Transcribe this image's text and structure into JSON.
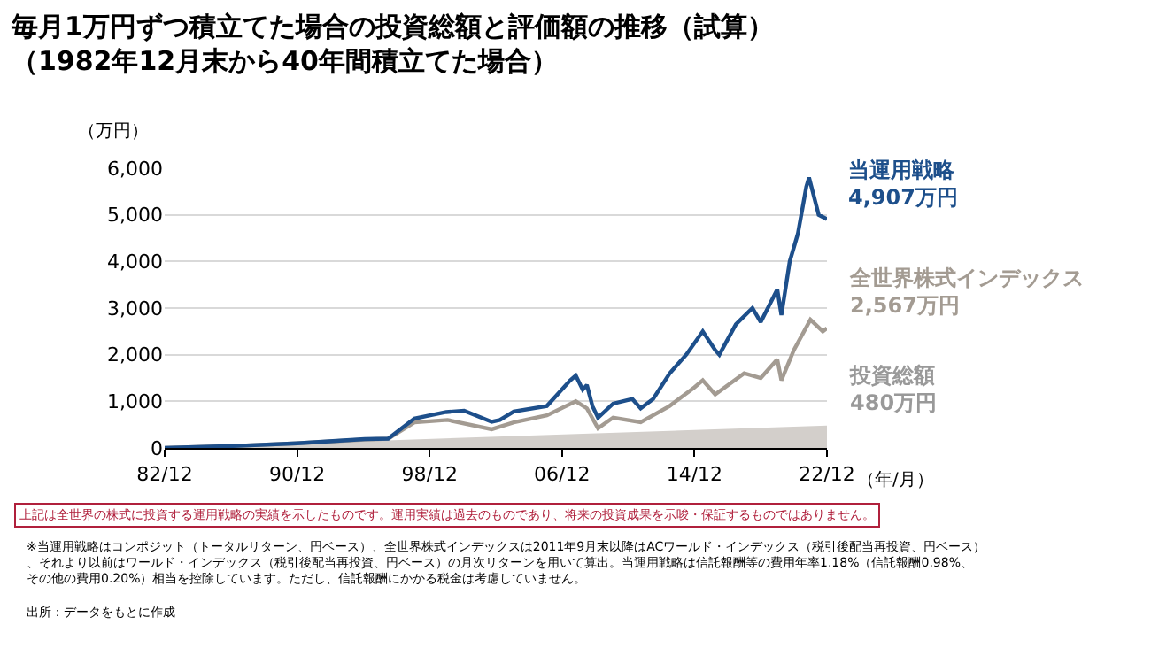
{
  "chart_data": {
    "type": "line",
    "title": "毎月1万円ずつ積立てた場合の投資総額と評価額の推移（試算）",
    "subtitle": "（1982年12月末から40年間積立てた場合）",
    "ylabel": "（万円）",
    "xlabel": "（年/月）",
    "xlim": [
      "1982-12",
      "2022-12"
    ],
    "xticks": [
      {
        "value": "1982-12",
        "label": "82/12"
      },
      {
        "value": "1990-12",
        "label": "90/12"
      },
      {
        "value": "1998-12",
        "label": "98/12"
      },
      {
        "value": "2006-12",
        "label": "06/12"
      },
      {
        "value": "2014-12",
        "label": "14/12"
      },
      {
        "value": "2022-12",
        "label": "22/12"
      }
    ],
    "ylim": [
      0,
      6000
    ],
    "yticks": [
      0,
      {
        "value": 1000,
        "label": "1,000"
      },
      {
        "value": 2000,
        "label": "2,000"
      },
      {
        "value": 3000,
        "label": "3,000"
      },
      {
        "value": 4000,
        "label": "4,000"
      },
      {
        "value": 5000,
        "label": "5,000"
      },
      {
        "value": 6000,
        "label": "6,000"
      }
    ],
    "grid": "y",
    "legend": false,
    "marker": "none",
    "line_style": "solid",
    "series": [
      {
        "name": "投資総額",
        "type": "area",
        "color": "#d3cfcb",
        "x": [
          "1982-12",
          "2022-12"
        ],
        "values": [
          0,
          480
        ]
      },
      {
        "name": "全世界株式インデックス",
        "color": "#a39b92",
        "x": [
          "1982-12",
          "1986-12",
          "1990-12",
          "1995-01",
          "1996-06",
          "1998-01",
          "2000-01",
          "2002-09",
          "2004-01",
          "2006-01",
          "2007-10",
          "2008-06",
          "2009-02",
          "2010-01",
          "2011-09",
          "2013-06",
          "2014-12",
          "2015-06",
          "2016-03",
          "2017-12",
          "2018-12",
          "2019-12",
          "2020-03",
          "2020-12",
          "2021-12",
          "2022-09",
          "2022-12"
        ],
        "values": [
          0,
          40,
          100,
          180,
          200,
          550,
          600,
          400,
          550,
          700,
          1000,
          850,
          420,
          650,
          550,
          900,
          1300,
          1450,
          1150,
          1600,
          1500,
          1900,
          1450,
          2100,
          2750,
          2500,
          2567
        ]
      },
      {
        "name": "当運用戦略",
        "color": "#1d4f8b",
        "x": [
          "1982-12",
          "1986-12",
          "1990-12",
          "1995-01",
          "1996-06",
          "1998-01",
          "1999-12",
          "2001-01",
          "2002-09",
          "2003-03",
          "2004-01",
          "2006-01",
          "2007-06",
          "2007-10",
          "2008-03",
          "2008-06",
          "2008-10",
          "2009-02",
          "2010-01",
          "2011-03",
          "2011-09",
          "2012-06",
          "2013-06",
          "2014-06",
          "2015-06",
          "2016-03",
          "2016-06",
          "2017-06",
          "2018-06",
          "2018-12",
          "2019-12",
          "2020-03",
          "2020-09",
          "2021-03",
          "2021-09",
          "2021-11",
          "2022-06",
          "2022-12"
        ],
        "values": [
          0,
          40,
          100,
          190,
          200,
          630,
          770,
          800,
          560,
          600,
          780,
          900,
          1450,
          1550,
          1250,
          1350,
          900,
          650,
          950,
          1050,
          850,
          1050,
          1600,
          2000,
          2500,
          2100,
          2000,
          2650,
          3000,
          2700,
          3400,
          2850,
          4000,
          4600,
          5600,
          5800,
          5000,
          4907
        ]
      }
    ],
    "annotations": [
      {
        "text": "480万円",
        "x": "2022-12",
        "y": 480
      },
      {
        "text": "2,567万円",
        "x": "2022-12",
        "y": 2567
      },
      {
        "text": "4,907万円",
        "x": "2022-12",
        "y": 4907
      },
      "上記は全世界の株式に投資する運用戦略の実績を示したものです。運用実績は過去のものであり、将来の投資成果を示唆・保証するものではありません。",
      "※当運用戦略はコンポジット（トータルリターン、円ベース）、全世界株式インデックスは2011年9月末以降はACワールド・インデックス（税引後配当再投資、円ベース）、それより以前はワールド・インデックス（税引後配当再投資、円ベース）の月次リターンを用いて算出。当運用戦略は信託報酬等の費用年率1.18%（信託報酬0.98%、その他の費用0.20%）相当を控除しています。ただし、信託報酬にかかる税金は考慮していません。",
      "出所：データをもとに作成"
    ]
  }
}
